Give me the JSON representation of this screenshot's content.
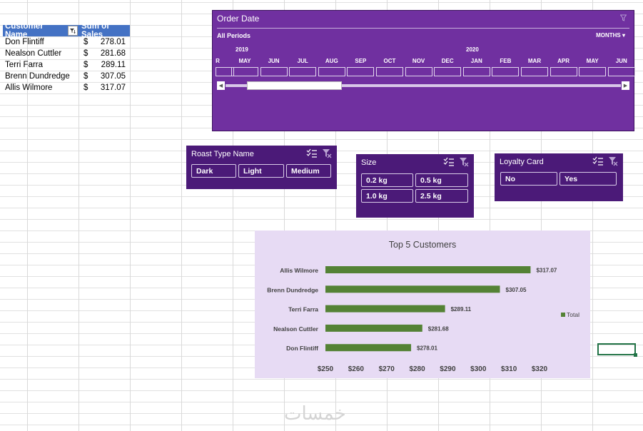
{
  "pivot": {
    "headers": [
      "Customer Name",
      "Sum of Sales"
    ],
    "rows": [
      {
        "name": "Don Flintiff",
        "currency": "$",
        "value": "278.01"
      },
      {
        "name": "Nealson Cuttler",
        "currency": "$",
        "value": "281.68"
      },
      {
        "name": "Terri Farra",
        "currency": "$",
        "value": "289.11"
      },
      {
        "name": "Brenn Dundredge",
        "currency": "$",
        "value": "307.05"
      },
      {
        "name": "Allis Wilmore",
        "currency": "$",
        "value": "317.07"
      }
    ]
  },
  "timeline": {
    "title": "Order Date",
    "all_periods": "All Periods",
    "level": "MONTHS",
    "years": [
      "2019",
      "2020"
    ],
    "months": [
      "R",
      "MAY",
      "JUN",
      "JUL",
      "AUG",
      "SEP",
      "OCT",
      "NOV",
      "DEC",
      "JAN",
      "FEB",
      "MAR",
      "APR",
      "MAY",
      "JUN"
    ]
  },
  "slicers": {
    "roast": {
      "title": "Roast Type Name",
      "items": [
        "Dark",
        "Light",
        "Medium"
      ]
    },
    "size": {
      "title": "Size",
      "items": [
        "0.2 kg",
        "0.5 kg",
        "1.0 kg",
        "2.5 kg"
      ]
    },
    "loyalty": {
      "title": "Loyalty Card",
      "items": [
        "No",
        "Yes"
      ]
    }
  },
  "chart_data": {
    "type": "bar",
    "orientation": "horizontal",
    "title": "Top 5 Customers",
    "categories": [
      "Allis Wilmore",
      "Brenn Dundredge",
      "Terri Farra",
      "Nealson Cuttler",
      "Don Flintiff"
    ],
    "values": [
      317.07,
      307.05,
      289.11,
      281.68,
      278.01
    ],
    "data_labels": [
      "$317.07",
      "$307.05",
      "$289.11",
      "$281.68",
      "$278.01"
    ],
    "x_ticks": [
      "$250",
      "$260",
      "$270",
      "$280",
      "$290",
      "$300",
      "$310",
      "$320"
    ],
    "xlim": [
      250,
      320
    ],
    "legend": "right",
    "legend_label": "Total",
    "series_color": "#548235",
    "grid": false
  },
  "watermark": "خمسات"
}
